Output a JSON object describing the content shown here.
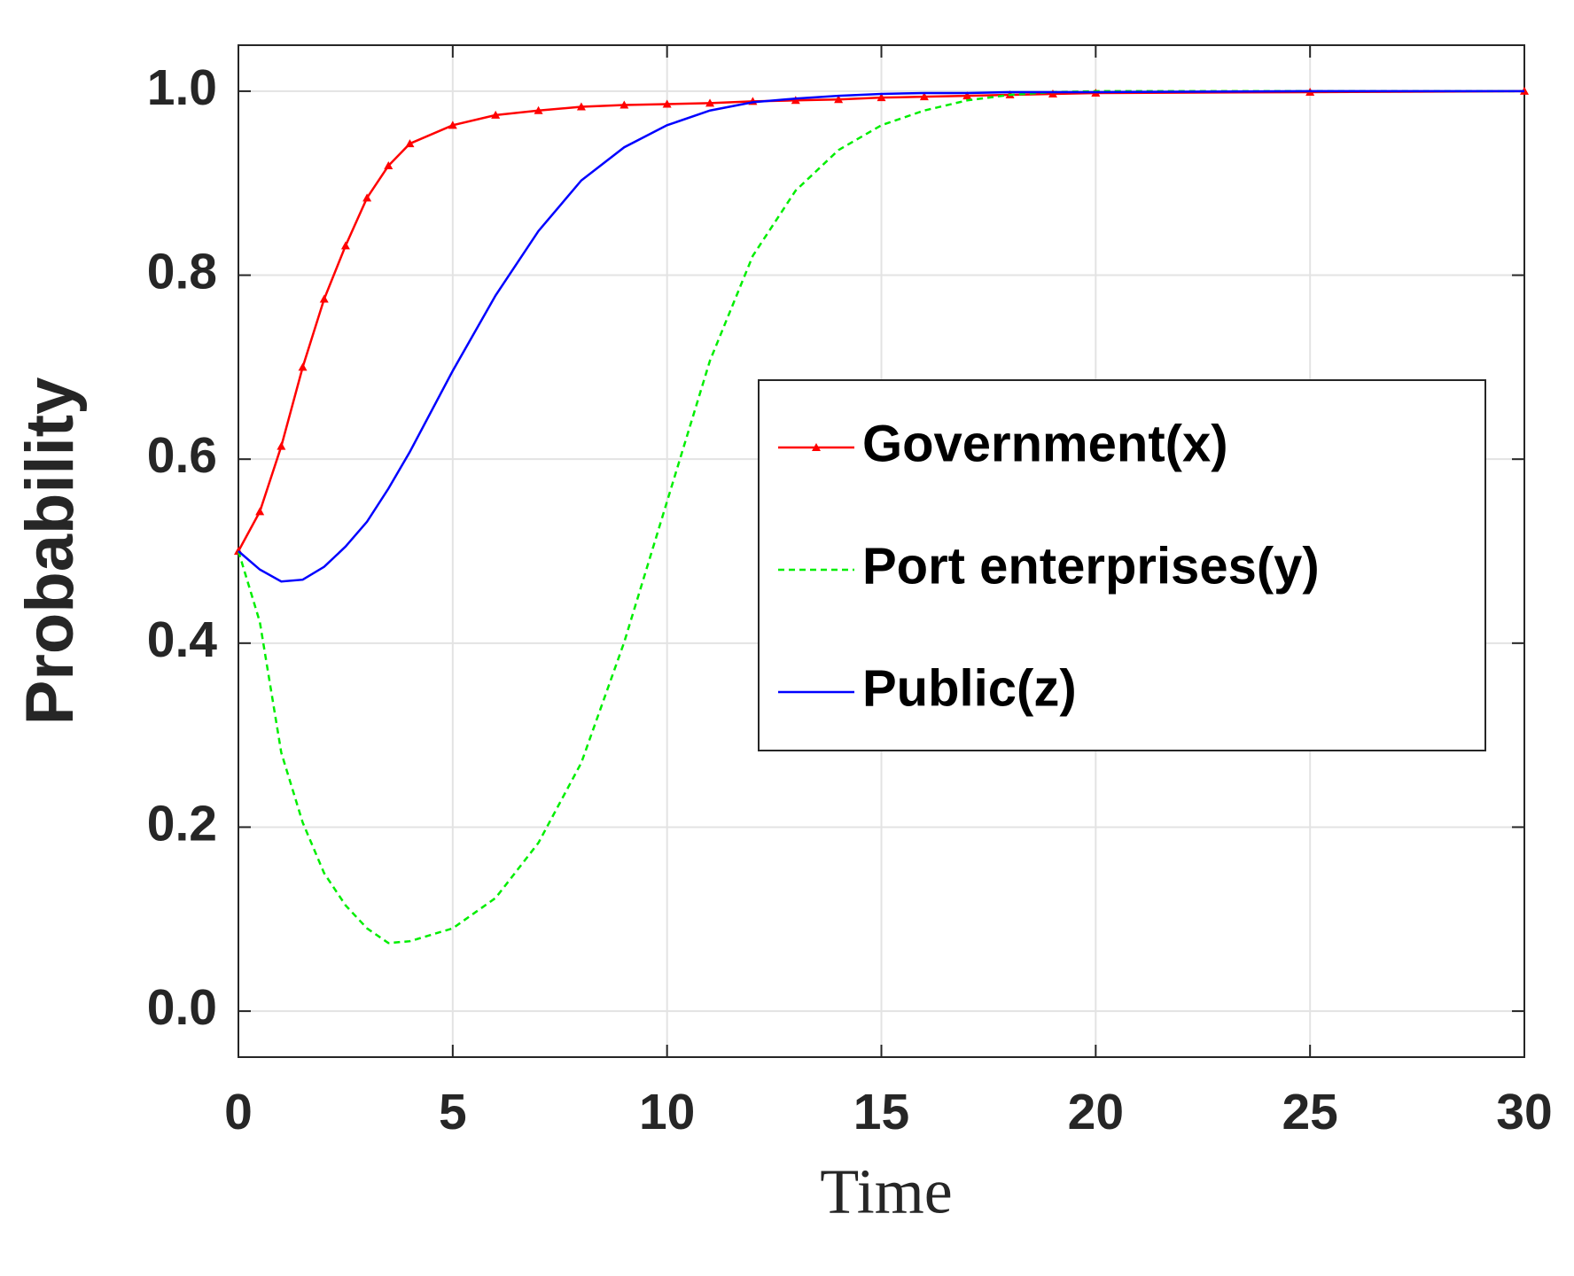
{
  "chart_data": {
    "type": "line",
    "xlabel": "Time",
    "ylabel": "Probability",
    "x": [
      0,
      0.5,
      1,
      1.5,
      2,
      2.5,
      3,
      3.5,
      4,
      5,
      6,
      7,
      8,
      9,
      10,
      11,
      12,
      13,
      14,
      15,
      16,
      17,
      18,
      19,
      20,
      25,
      30
    ],
    "series": [
      {
        "name": "Government(x)",
        "color": "#ff0000",
        "dash": false,
        "marker": "triangle",
        "values": [
          0.5,
          0.543,
          0.614,
          0.7,
          0.774,
          0.832,
          0.884,
          0.919,
          0.943,
          0.963,
          0.974,
          0.979,
          0.983,
          0.985,
          0.986,
          0.987,
          0.989,
          0.99,
          0.991,
          0.993,
          0.994,
          0.995,
          0.996,
          0.997,
          0.998,
          0.999,
          1.0
        ]
      },
      {
        "name": "Port enterprises(y)",
        "color": "#00ee00",
        "dash": true,
        "values": [
          0.5,
          0.423,
          0.281,
          0.205,
          0.15,
          0.115,
          0.09,
          0.074,
          0.076,
          0.09,
          0.123,
          0.183,
          0.27,
          0.401,
          0.554,
          0.707,
          0.821,
          0.892,
          0.936,
          0.963,
          0.979,
          0.99,
          0.996,
          0.999,
          1.0,
          1.0,
          1.0
        ]
      },
      {
        "name": "Public(z)",
        "color": "#0000ff",
        "dash": false,
        "values": [
          0.5,
          0.48,
          0.467,
          0.469,
          0.483,
          0.505,
          0.532,
          0.568,
          0.608,
          0.696,
          0.778,
          0.848,
          0.903,
          0.939,
          0.963,
          0.979,
          0.988,
          0.992,
          0.995,
          0.997,
          0.998,
          0.998,
          0.999,
          0.999,
          0.999,
          1.0,
          1.0
        ]
      }
    ],
    "xlim": [
      0,
      30
    ],
    "xticks": [
      0,
      5,
      10,
      15,
      20,
      25,
      30
    ],
    "ylim": [
      -0.05,
      1.05
    ],
    "yticks": [
      {
        "value": 0,
        "label": "0.0"
      },
      0.2,
      0.4,
      0.6,
      0.8,
      {
        "value": 1,
        "label": "1.0"
      }
    ],
    "grid": true
  }
}
